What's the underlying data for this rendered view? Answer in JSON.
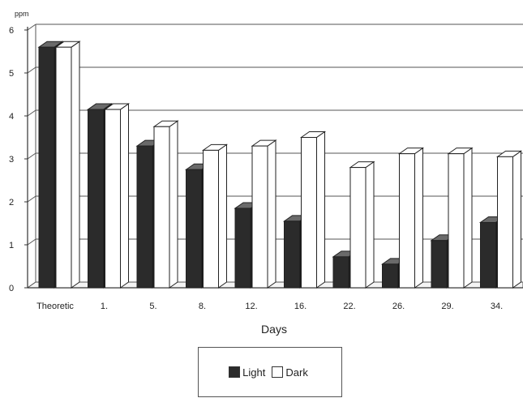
{
  "chart_data": {
    "type": "bar",
    "ylabel": "ppm",
    "xlabel": "Days",
    "categories": [
      "Theoretic",
      "1.",
      "5.",
      "8.",
      "12.",
      "16.",
      "22.",
      "26.",
      "29.",
      "34."
    ],
    "series": [
      {
        "name": "Light",
        "color": "#2b2b2b",
        "values": [
          5.6,
          4.15,
          3.3,
          2.75,
          1.85,
          1.55,
          0.72,
          0.55,
          1.1,
          1.52
        ]
      },
      {
        "name": "Dark",
        "color": "#ffffff",
        "values": [
          5.6,
          4.15,
          3.75,
          3.2,
          3.3,
          3.5,
          2.8,
          3.12,
          3.12,
          3.05
        ]
      }
    ],
    "ylim": [
      0,
      6
    ],
    "yticks": [
      0,
      1,
      2,
      3,
      4,
      5,
      6
    ],
    "grid": true,
    "legend_position": "bottom-center",
    "style": "3d-bars"
  }
}
